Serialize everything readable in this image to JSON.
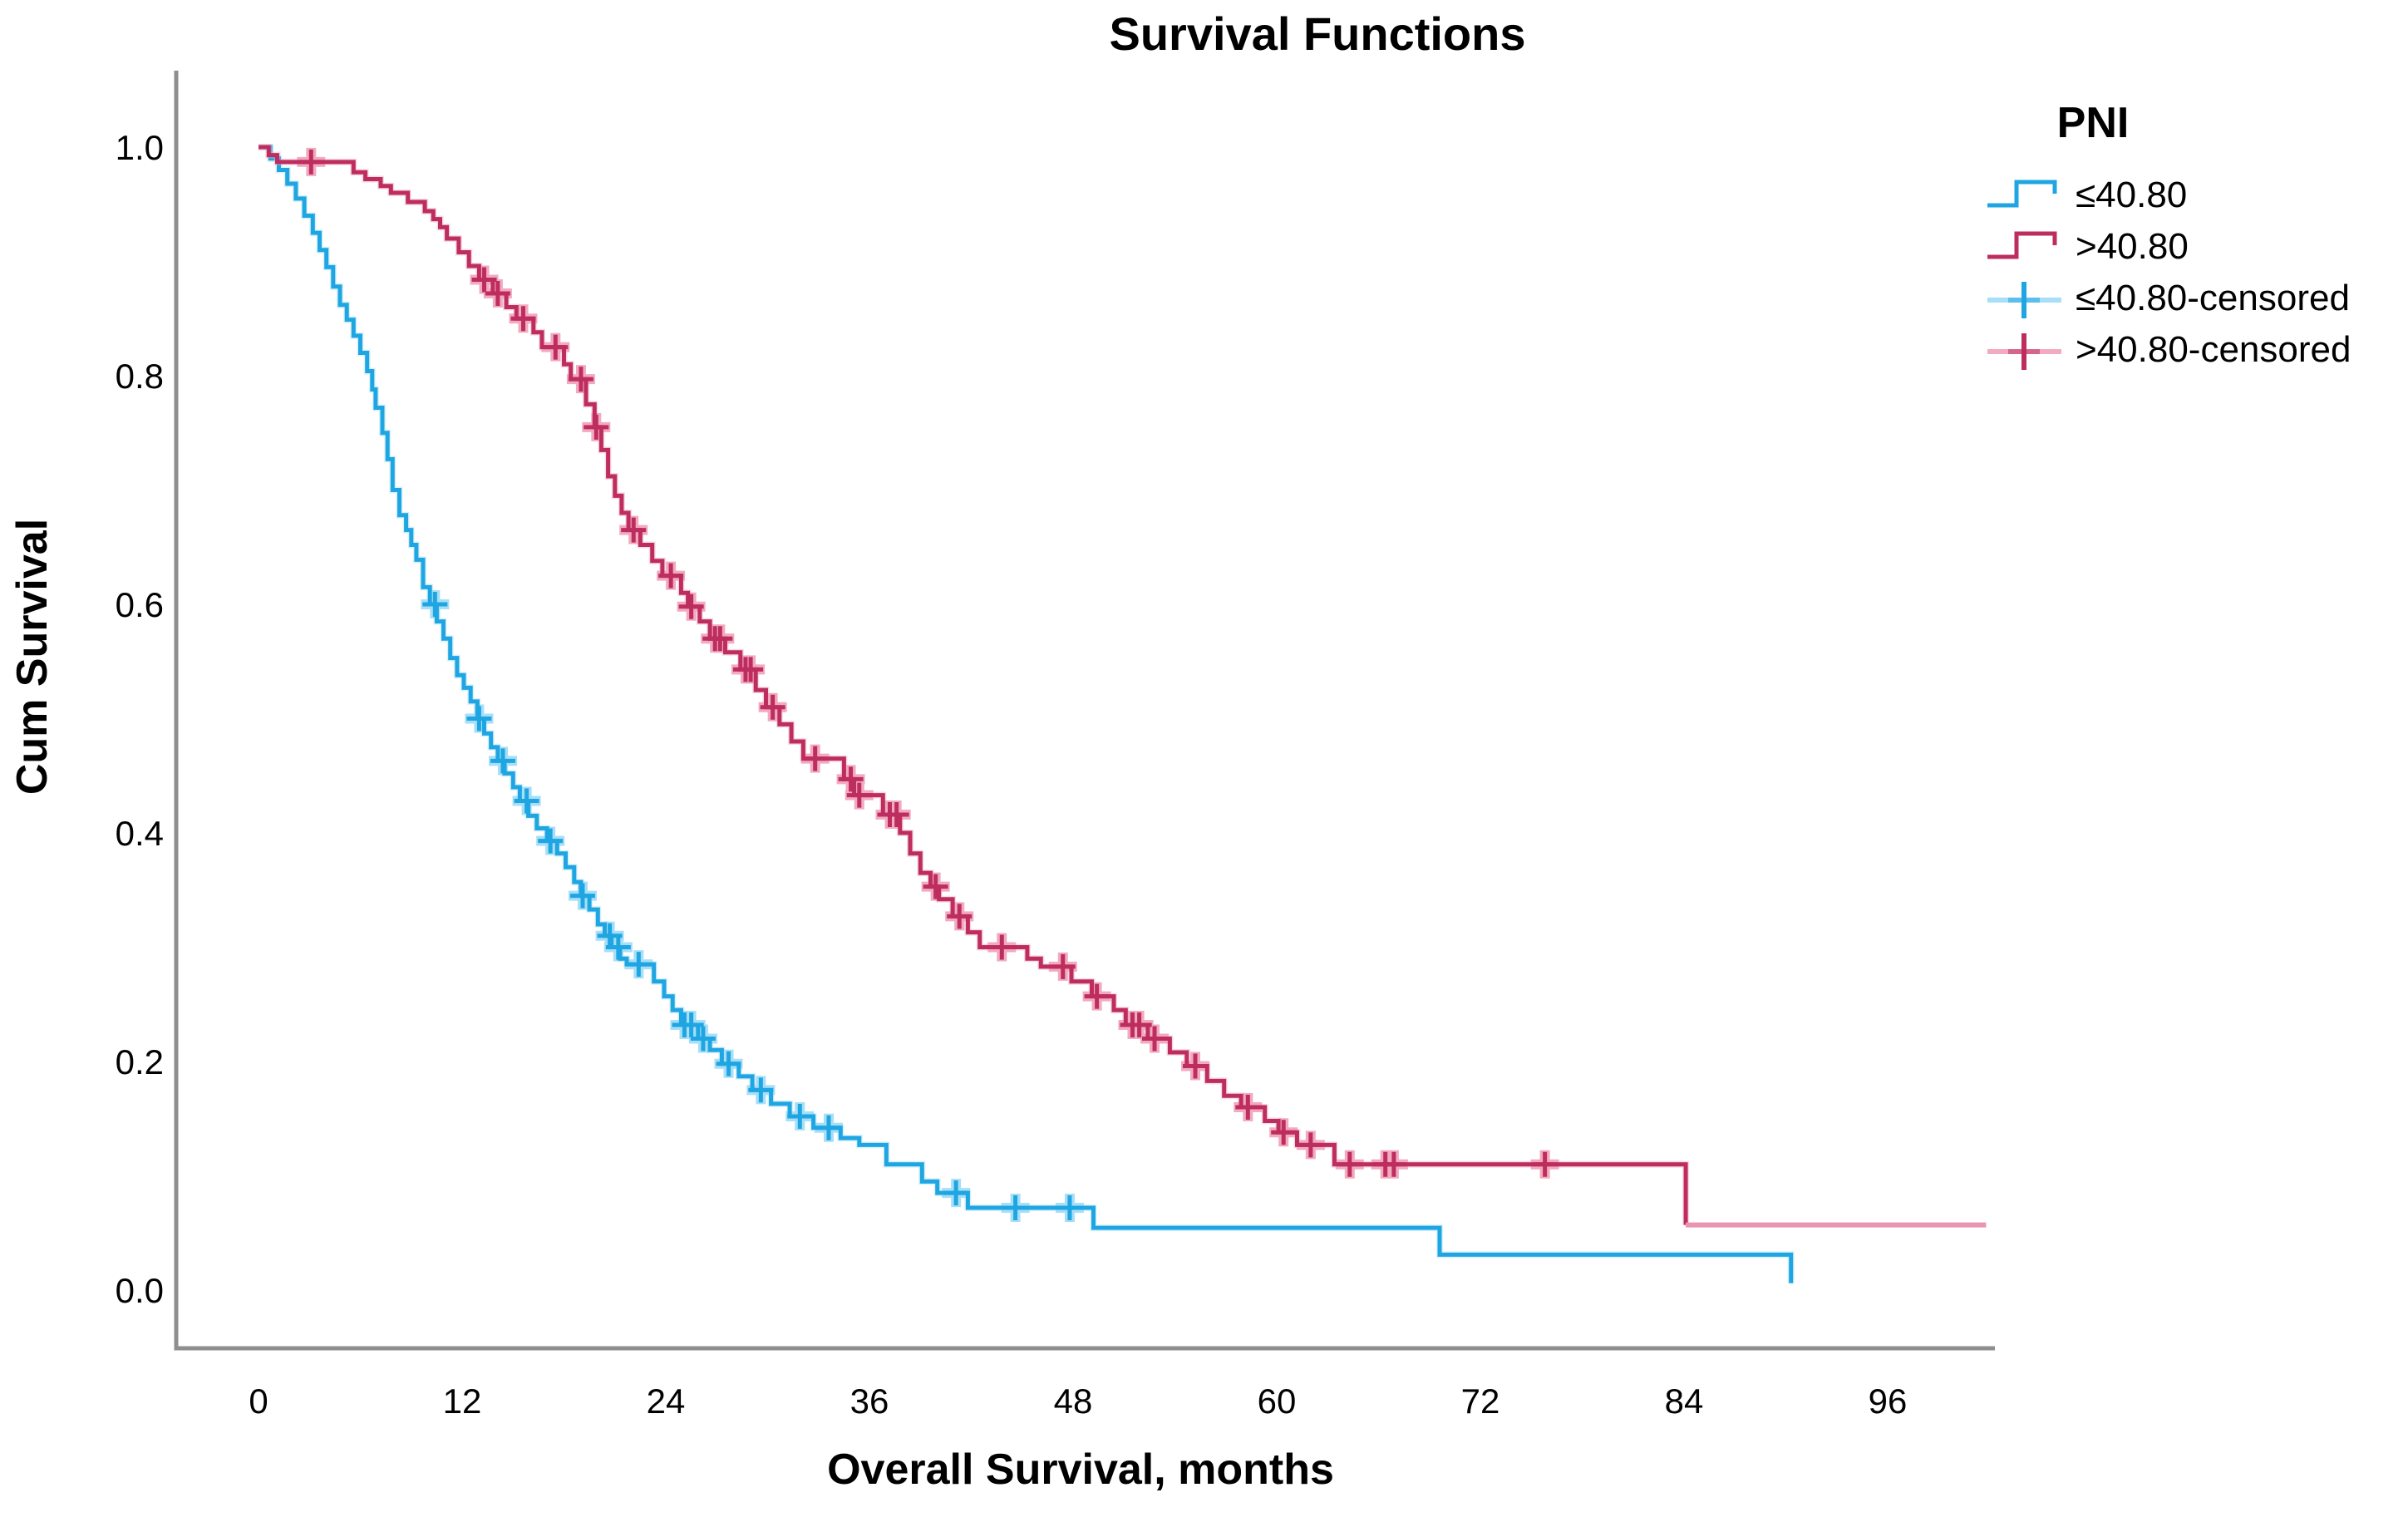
{
  "title": "Survival Functions",
  "axes": {
    "x_label": "Overall Survival, months",
    "y_label": "Cum Survival"
  },
  "legend": {
    "title": "PNI",
    "items": [
      {
        "label": "≤40.80",
        "type": "line",
        "color": "#1FA6E2"
      },
      {
        "label": ">40.80",
        "type": "line",
        "color": "#BE2D5F"
      },
      {
        "label": "≤40.80-censored",
        "type": "censor",
        "color": "#1FA6E2",
        "halo": "#A6DFF7"
      },
      {
        "label": ">40.80-censored",
        "type": "censor",
        "color": "#BE2D5F",
        "halo": "#F2AABF"
      }
    ]
  },
  "chart_data": {
    "type": "line",
    "subtype": "kaplan-meier-step",
    "title": "Survival Functions",
    "xlabel": "Overall Survival, months",
    "ylabel": "Cum Survival",
    "legend_title": "PNI",
    "legend_position": "right",
    "grid": false,
    "x_ticks": [
      0,
      12,
      24,
      36,
      48,
      60,
      72,
      84,
      96
    ],
    "y_ticks": [
      {
        "label": "1.0",
        "value": 1.0
      },
      {
        "label": "0.8",
        "value": 0.8
      },
      {
        "label": "0.6",
        "value": 0.6
      },
      {
        "label": "0.4",
        "value": 0.4
      },
      {
        "label": "0.2",
        "value": 0.2
      },
      {
        "label": "0.0",
        "value": 0.0
      }
    ],
    "xlim": [
      0,
      102.5
    ],
    "ylim": [
      0,
      1.05
    ],
    "series": [
      {
        "name": "≤40.80",
        "color": "#1FA6E2",
        "halo_color": "#A6DFF7",
        "points": [
          [
            0,
            1
          ],
          [
            0.7,
            0.99
          ],
          [
            1.2,
            0.98
          ],
          [
            1.7,
            0.968
          ],
          [
            2.2,
            0.955
          ],
          [
            2.7,
            0.94
          ],
          [
            3.2,
            0.925
          ],
          [
            3.6,
            0.91
          ],
          [
            4,
            0.895
          ],
          [
            4.4,
            0.878
          ],
          [
            4.8,
            0.862
          ],
          [
            5.2,
            0.849
          ],
          [
            5.6,
            0.835
          ],
          [
            6,
            0.82
          ],
          [
            6.4,
            0.804
          ],
          [
            6.7,
            0.788
          ],
          [
            6.9,
            0.772
          ],
          [
            7.3,
            0.75
          ],
          [
            7.6,
            0.727
          ],
          [
            7.9,
            0.7
          ],
          [
            8.3,
            0.678
          ],
          [
            8.7,
            0.665
          ],
          [
            9,
            0.652
          ],
          [
            9.3,
            0.639
          ],
          [
            9.7,
            0.615
          ],
          [
            10.1,
            0.6
          ],
          [
            10.5,
            0.585
          ],
          [
            10.9,
            0.57
          ],
          [
            11.3,
            0.553
          ],
          [
            11.7,
            0.538
          ],
          [
            12.1,
            0.527
          ],
          [
            12.5,
            0.515
          ],
          [
            12.9,
            0.5
          ],
          [
            13.3,
            0.487
          ],
          [
            13.7,
            0.475
          ],
          [
            14.1,
            0.463
          ],
          [
            14.5,
            0.452
          ],
          [
            15,
            0.44
          ],
          [
            15.4,
            0.428
          ],
          [
            15.9,
            0.415
          ],
          [
            16.4,
            0.404
          ],
          [
            17,
            0.393
          ],
          [
            17.6,
            0.382
          ],
          [
            18.1,
            0.37
          ],
          [
            18.6,
            0.357
          ],
          [
            19,
            0.345
          ],
          [
            19.5,
            0.333
          ],
          [
            20,
            0.32
          ],
          [
            20.4,
            0.31
          ],
          [
            20.8,
            0.3
          ],
          [
            21.3,
            0.29
          ],
          [
            21.7,
            0.285
          ],
          [
            23.3,
            0.27
          ],
          [
            23.9,
            0.257
          ],
          [
            24.4,
            0.245
          ],
          [
            24.9,
            0.232
          ],
          [
            25.9,
            0.22
          ],
          [
            26.6,
            0.21
          ],
          [
            27.3,
            0.198
          ],
          [
            28.3,
            0.187
          ],
          [
            29.1,
            0.175
          ],
          [
            30.2,
            0.163
          ],
          [
            31.3,
            0.152
          ],
          [
            32.7,
            0.142
          ],
          [
            34.3,
            0.133
          ],
          [
            35.4,
            0.127
          ],
          [
            37,
            0.11
          ],
          [
            39.1,
            0.095
          ],
          [
            40,
            0.085
          ],
          [
            41.8,
            0.072
          ],
          [
            49.2,
            0.0545
          ],
          [
            69.6,
            0.031
          ],
          [
            90.3,
            0.006
          ]
        ],
        "censored_months": [
          10.4,
          13,
          14.4,
          15.8,
          17.2,
          19.1,
          20.7,
          21.2,
          22.4,
          25.1,
          25.5,
          26.2,
          27.7,
          29.6,
          31.9,
          33.6,
          41.1,
          44.6,
          47.8
        ]
      },
      {
        "name": ">40.80",
        "color": "#BE2D5F",
        "halo_color": "#F2AABF",
        "tail_light_color": "#E995AF",
        "tail_end_month": 101.8,
        "points": [
          [
            0,
            1
          ],
          [
            0.6,
            0.993
          ],
          [
            1.1,
            0.987
          ],
          [
            5.6,
            0.978
          ],
          [
            6.3,
            0.972
          ],
          [
            7.2,
            0.966
          ],
          [
            7.8,
            0.96
          ],
          [
            8.8,
            0.952
          ],
          [
            9.8,
            0.944
          ],
          [
            10.3,
            0.937
          ],
          [
            10.7,
            0.93
          ],
          [
            11.1,
            0.92
          ],
          [
            11.8,
            0.908
          ],
          [
            12.4,
            0.896
          ],
          [
            13,
            0.884
          ],
          [
            13.8,
            0.872
          ],
          [
            14.6,
            0.86
          ],
          [
            15.2,
            0.85
          ],
          [
            16.2,
            0.838
          ],
          [
            16.7,
            0.825
          ],
          [
            18,
            0.81
          ],
          [
            18.4,
            0.797
          ],
          [
            19.3,
            0.775
          ],
          [
            19.8,
            0.755
          ],
          [
            20.2,
            0.735
          ],
          [
            20.6,
            0.712
          ],
          [
            21,
            0.695
          ],
          [
            21.4,
            0.68
          ],
          [
            21.8,
            0.665
          ],
          [
            22.5,
            0.652
          ],
          [
            23.2,
            0.638
          ],
          [
            23.8,
            0.625
          ],
          [
            24.9,
            0.61
          ],
          [
            25.3,
            0.598
          ],
          [
            26,
            0.585
          ],
          [
            26.6,
            0.57
          ],
          [
            27.5,
            0.558
          ],
          [
            28.4,
            0.543
          ],
          [
            29.3,
            0.525
          ],
          [
            29.9,
            0.51
          ],
          [
            30.7,
            0.495
          ],
          [
            31.4,
            0.48
          ],
          [
            32.1,
            0.465
          ],
          [
            34.5,
            0.447
          ],
          [
            35.1,
            0.433
          ],
          [
            36.8,
            0.416
          ],
          [
            37.8,
            0.4
          ],
          [
            38.4,
            0.382
          ],
          [
            39,
            0.365
          ],
          [
            39.6,
            0.353
          ],
          [
            40.1,
            0.342
          ],
          [
            40.9,
            0.327
          ],
          [
            41.8,
            0.313
          ],
          [
            42.5,
            0.3
          ],
          [
            45.3,
            0.29
          ],
          [
            46.1,
            0.283
          ],
          [
            47.9,
            0.27
          ],
          [
            49.1,
            0.257
          ],
          [
            50.4,
            0.245
          ],
          [
            51.1,
            0.232
          ],
          [
            52.4,
            0.22
          ],
          [
            53.7,
            0.208
          ],
          [
            54.7,
            0.196
          ],
          [
            55.9,
            0.183
          ],
          [
            56.9,
            0.17
          ],
          [
            57.9,
            0.16
          ],
          [
            59.3,
            0.148
          ],
          [
            60.1,
            0.138
          ],
          [
            61.2,
            0.127
          ],
          [
            63.4,
            0.11
          ],
          [
            84.1,
            0.057
          ]
        ],
        "censored_months": [
          3.1,
          13.3,
          14.1,
          15.6,
          17.5,
          19,
          19.9,
          22.1,
          24.3,
          25.5,
          26.9,
          27.2,
          28.7,
          29,
          30.3,
          32.8,
          34.9,
          35.4,
          37.2,
          37.6,
          39.9,
          41.3,
          43.8,
          47.4,
          49.4,
          51.5,
          51.9,
          52.8,
          55.2,
          58.3,
          60.4,
          62,
          64.3,
          66.4,
          66.9,
          75.8
        ]
      }
    ]
  }
}
